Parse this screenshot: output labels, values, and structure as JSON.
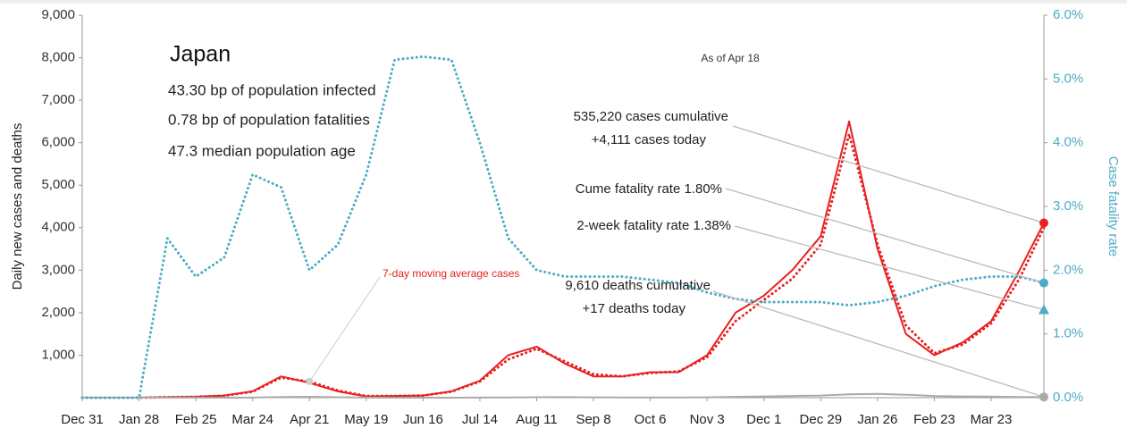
{
  "chart_data": {
    "type": "line",
    "title": "Japan",
    "info": [
      "43.30 bp of population infected",
      "0.78 bp of population fatalities",
      "47.3 median population age"
    ],
    "as_of": "As of Apr 18",
    "y_label": "Daily new cases and deaths",
    "y2_label": "Case fatality rate",
    "x": [
      0,
      14,
      28,
      42,
      56,
      70,
      84,
      98,
      112,
      126,
      140,
      154,
      168,
      182,
      196,
      210,
      224,
      238,
      252,
      266,
      280,
      294,
      308,
      322,
      336,
      350,
      364,
      378,
      392,
      406,
      420,
      434,
      448,
      462,
      474
    ],
    "xlim": [
      0,
      474
    ],
    "xticks": [
      {
        "value": 0,
        "label": "Dec 31"
      },
      {
        "value": 28,
        "label": "Jan 28"
      },
      {
        "value": 56,
        "label": "Feb 25"
      },
      {
        "value": 84,
        "label": "Mar 24"
      },
      {
        "value": 112,
        "label": "Apr 21"
      },
      {
        "value": 140,
        "label": "May 19"
      },
      {
        "value": 168,
        "label": "Jun 16"
      },
      {
        "value": 196,
        "label": "Jul 14"
      },
      {
        "value": 224,
        "label": "Aug 11"
      },
      {
        "value": 252,
        "label": "Sep 8"
      },
      {
        "value": 280,
        "label": "Oct 6"
      },
      {
        "value": 308,
        "label": "Nov 3"
      },
      {
        "value": 336,
        "label": "Dec 1"
      },
      {
        "value": 364,
        "label": "Dec 29"
      },
      {
        "value": 392,
        "label": "Jan 26"
      },
      {
        "value": 420,
        "label": "Feb 23"
      },
      {
        "value": 448,
        "label": "Mar 23"
      }
    ],
    "ylim": [
      0,
      9000
    ],
    "yticks": [
      {
        "value": 1000,
        "label": "1,000"
      },
      {
        "value": 2000,
        "label": "2,000"
      },
      {
        "value": 3000,
        "label": "3,000"
      },
      {
        "value": 4000,
        "label": "4,000"
      },
      {
        "value": 5000,
        "label": "5,000"
      },
      {
        "value": 6000,
        "label": "6,000"
      },
      {
        "value": 7000,
        "label": "7,000"
      },
      {
        "value": 8000,
        "label": "8,000"
      },
      {
        "value": 9000,
        "label": "9,000"
      }
    ],
    "y2lim": [
      0,
      6
    ],
    "y2ticks": [
      {
        "value": 0,
        "label": "0.0%"
      },
      {
        "value": 1,
        "label": "1.0%"
      },
      {
        "value": 2,
        "label": "2.0%"
      },
      {
        "value": 3,
        "label": "3.0%"
      },
      {
        "value": 4,
        "label": "4.0%"
      },
      {
        "value": 5,
        "label": "5.0%"
      },
      {
        "value": 6,
        "label": "6.0%"
      }
    ],
    "series": [
      {
        "color": "#e8201f",
        "style": "solid",
        "values": [
          0,
          0,
          0,
          10,
          20,
          50,
          150,
          500,
          350,
          150,
          30,
          40,
          50,
          150,
          400,
          1000,
          1200,
          800,
          500,
          500,
          600,
          600,
          1000,
          2000,
          2400,
          3000,
          3800,
          6500,
          3500,
          1500,
          1000,
          1300,
          1800,
          3000,
          4111
        ]
      },
      {
        "name": "7-day moving average cases",
        "color": "#e8201f",
        "style": "dotted",
        "values": [
          0,
          0,
          0,
          10,
          20,
          45,
          140,
          470,
          380,
          170,
          40,
          40,
          50,
          140,
          380,
          900,
          1150,
          850,
          550,
          500,
          580,
          620,
          950,
          1800,
          2300,
          2800,
          3600,
          6200,
          3600,
          1700,
          1050,
          1250,
          1750,
          2800,
          4000
        ]
      },
      {
        "color": "#aaaaaa",
        "style": "solid",
        "values": [
          0,
          0,
          0,
          0,
          0,
          1,
          2,
          15,
          20,
          10,
          3,
          1,
          1,
          1,
          2,
          5,
          10,
          12,
          8,
          6,
          5,
          6,
          8,
          20,
          30,
          40,
          50,
          80,
          90,
          70,
          40,
          30,
          25,
          15,
          17
        ]
      },
      {
        "color": "#4bacc6",
        "style": "dotted",
        "axis": "y2",
        "values": [
          0,
          0,
          0,
          2.5,
          1.9,
          2.2,
          3.5,
          3.3,
          2.0,
          2.4,
          3.5,
          5.3,
          5.35,
          5.3,
          4.0,
          2.5,
          2.0,
          1.9,
          1.9,
          1.9,
          1.85,
          1.8,
          1.65,
          1.55,
          1.5,
          1.5,
          1.5,
          1.45,
          1.5,
          1.6,
          1.75,
          1.85,
          1.9,
          1.9,
          1.8
        ]
      }
    ],
    "two_week_fatality_rate": 1.38,
    "annotations": [
      "535,220 cases cumulative",
      "+4,111 cases today",
      "Cume fatality rate 1.80%",
      "2-week fatality rate 1.38%",
      "9,610 deaths cumulative",
      "+17 deaths today"
    ]
  }
}
